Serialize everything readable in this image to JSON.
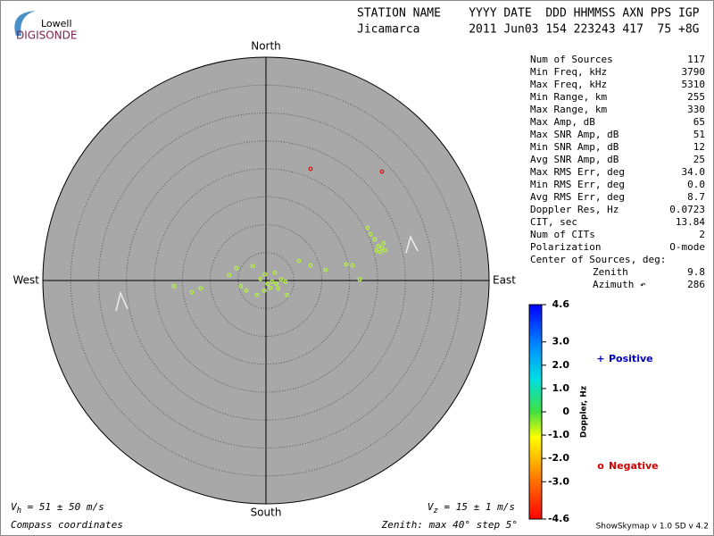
{
  "chart_data": {
    "type": "skymap",
    "logo": {
      "top": "Lowell",
      "bottom": "DIGISONDE"
    },
    "header": [
      "STATION NAME    YYYY DATE  DDD HHMMSS AXN PPS IGP",
      "Jicamarca       2011 Jun03 154 223243 417  75 +8G"
    ],
    "compass": {
      "north": "North",
      "south": "South",
      "east": "East",
      "west": "West"
    },
    "rlim": [
      0,
      40
    ],
    "rstep": 5,
    "points": {
      "x": [
        -16.5,
        -13.3,
        -11.7,
        -6.6,
        -5.3,
        -4.5,
        -2.4,
        -3.5,
        -1.6,
        -1,
        0.3,
        1.1,
        1.9,
        2.7,
        3.5,
        0.8,
        -0.3,
        1.6,
        3.8,
        5.9,
        8,
        10.7,
        14.4,
        15.5,
        16.8,
        18.2,
        18.7,
        19.5,
        20.2,
        20.8,
        21.1,
        20.5,
        21.4,
        19.8,
        -0.2,
        2.2,
        8,
        20.8
      ],
      "y": [
        -1,
        -2.1,
        -1.4,
        1,
        2.2,
        -1,
        2.6,
        -1.8,
        -2.6,
        0.3,
        -0.6,
        -0.2,
        -0.6,
        0.2,
        -0.2,
        -1.3,
        -1.8,
        1.4,
        -2.6,
        3.5,
        2.7,
        1.9,
        2.9,
        2.7,
        0.2,
        9.4,
        8.3,
        7.4,
        6.2,
        5.8,
        6.7,
        5.1,
        5.4,
        5.4,
        1.1,
        -1.4,
        20,
        19.5
      ],
      "colors": [
        "#b5f53c",
        "#b5f53c",
        "#b5f53c",
        "#b5f53c",
        "#b5f53c",
        "#b5f53c",
        "#b5f53c",
        "#b5f53c",
        "#b5f53c",
        "#b5f53c",
        "#b5f53c",
        "#b5f53c",
        "#b5f53c",
        "#b5f53c",
        "#b5f53c",
        "#b5f53c",
        "#b5f53c",
        "#b5f53c",
        "#b5f53c",
        "#b5f53c",
        "#b5f53c",
        "#b5f53c",
        "#b5f53c",
        "#b5f53c",
        "#b5f53c",
        "#b5f53c",
        "#b5f53c",
        "#b5f53c",
        "#b5f53c",
        "#b5f53c",
        "#b5f53c",
        "#b5f53c",
        "#b5f53c",
        "#b5f53c",
        "#b5f53c",
        "#b5f53c",
        "#e01010",
        "#e01010"
      ]
    },
    "stats": [
      [
        "Num of Sources",
        "117"
      ],
      [
        "Min Freq, kHz",
        "3790"
      ],
      [
        "Max Freq, kHz",
        "5310"
      ],
      [
        "Min Range, km",
        "255"
      ],
      [
        "Max Range, km",
        "330"
      ],
      [
        "Max Amp, dB",
        "65"
      ],
      [
        "Max SNR Amp, dB",
        "51"
      ],
      [
        "Min SNR Amp, dB",
        "12"
      ],
      [
        "Avg SNR Amp, dB",
        "25"
      ],
      [
        "Max RMS Err, deg",
        "34.0"
      ],
      [
        "Min RMS Err, deg",
        "0.0"
      ],
      [
        "Avg RMS Err, deg",
        "8.7"
      ],
      [
        "Doppler Res, Hz",
        "0.0723"
      ],
      [
        "CIT, sec",
        "13.84"
      ],
      [
        "Num of CITs",
        "2"
      ],
      [
        "Polarization",
        "O-mode"
      ]
    ],
    "center_title": "Center of Sources, deg:",
    "center": [
      [
        "Zenith",
        "9.8"
      ],
      [
        "Azimuth ↶",
        "286"
      ]
    ],
    "colorbar": {
      "label": "Doppler, Hz",
      "lim": [
        -4.6,
        4.6
      ],
      "ticks": [
        4.6,
        {
          "value": 3,
          "label": "3.0"
        },
        {
          "value": 2,
          "label": "2.0"
        },
        {
          "value": 1,
          "label": "1.0"
        },
        0,
        {
          "value": -1,
          "label": "-1.0"
        },
        {
          "value": -2,
          "label": "-2.0"
        },
        {
          "value": -3,
          "label": "-3.0"
        },
        -4.6
      ]
    },
    "legend": [
      {
        "symbol": "+",
        "name": "Positive",
        "color": "#0000c0"
      },
      {
        "symbol": "o",
        "name": "Negative",
        "color": "#d00000"
      }
    ],
    "vh": {
      "symbol": "V",
      "sub": "h",
      "text": " = 51 ± 50 m/s"
    },
    "vz": {
      "symbol": "V",
      "sub": "z",
      "text": " = 15 ± 1 m/s"
    },
    "footer_left": "Compass coordinates",
    "footer_mid": "Zenith: max 40°  step 5°",
    "footer_right": "ShowSkymap v 1.0   SD v 4.2"
  }
}
